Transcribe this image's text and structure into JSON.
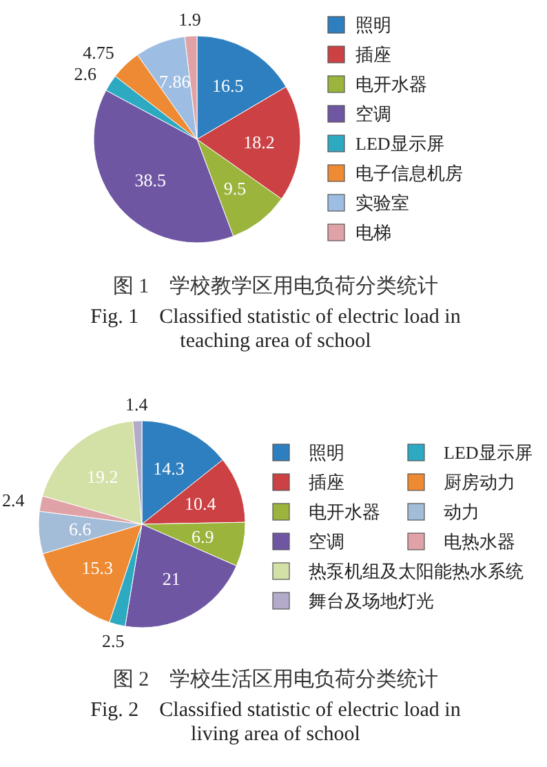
{
  "chart_data": [
    {
      "type": "pie",
      "title": "图 1　学校教学区用电负荷分类统计",
      "subtitle": "Fig. 1　Classified statistic of electric load in teaching area of school",
      "categories": [
        "照明",
        "插座",
        "电开水器",
        "空调",
        "LED显示屏",
        "电子信息机房",
        "实验室",
        "电梯"
      ],
      "values": [
        16.5,
        18.2,
        9.5,
        38.5,
        2.6,
        4.75,
        7.86,
        1.9
      ],
      "colors": [
        "#2e7fbf",
        "#cc4143",
        "#9ab43c",
        "#6e56a3",
        "#2ea9c2",
        "#ee8a33",
        "#9dbde3",
        "#e0a2a6"
      ],
      "data_labels": true,
      "legend": "right"
    },
    {
      "type": "pie",
      "title": "图 2　学校生活区用电负荷分类统计",
      "subtitle": "Fig. 2　Classified statistic of electric load in living area of school",
      "categories": [
        "照明",
        "插座",
        "电开水器",
        "空调",
        "LED显示屏",
        "厨房动力",
        "动力",
        "电热水器",
        "热泵机组及太阳能热水系统",
        "舞台及场地灯光"
      ],
      "values": [
        14.3,
        10.4,
        6.9,
        21,
        2.5,
        15.3,
        6.6,
        2.4,
        19.2,
        1.4
      ],
      "colors": [
        "#2e7fbf",
        "#cc4143",
        "#9ab43c",
        "#6e56a3",
        "#2ea9c2",
        "#ee8a33",
        "#a3bcd8",
        "#e0a2a6",
        "#d3e0a6",
        "#b3abc9"
      ],
      "data_labels": true,
      "legend": "right"
    }
  ]
}
